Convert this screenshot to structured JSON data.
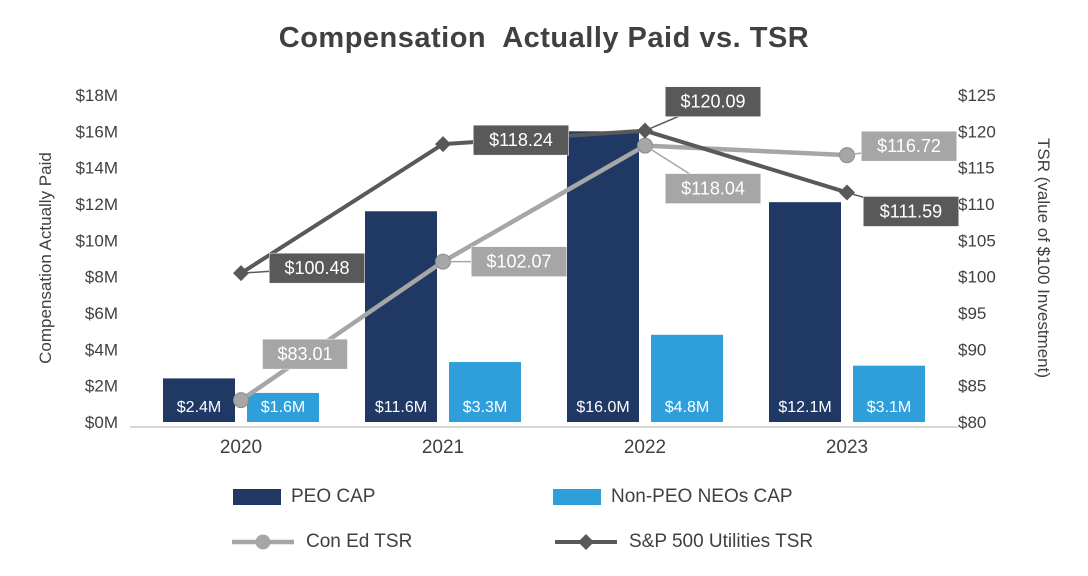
{
  "title": "Compensation  Actually Paid vs. TSR",
  "chart_data": {
    "type": "combo-bar-line",
    "title": "Compensation  Actually Paid vs. TSR",
    "categories": [
      "2020",
      "2021",
      "2022",
      "2023"
    ],
    "gridlines": false,
    "legend_position": "bottom",
    "left_axis": {
      "title": "Compensation Actually Paid",
      "min": 0,
      "max": 18,
      "tick_labels": [
        "$0M",
        "$2M",
        "$4M",
        "$6M",
        "$8M",
        "$10M",
        "$12M",
        "$14M",
        "$16M",
        "$18M"
      ]
    },
    "right_axis": {
      "title": "TSR (value of $100 Investment)",
      "min": 80,
      "max": 125,
      "tick_labels": [
        "$80",
        "$85",
        "$90",
        "$95",
        "$100",
        "$105",
        "$110",
        "$115",
        "$120",
        "$125"
      ]
    },
    "bar_series": [
      {
        "name": "PEO CAP",
        "color": "#1F3864",
        "values_millions": [
          2.4,
          11.6,
          16.0,
          12.1
        ],
        "data_labels": [
          "$2.4M",
          "$11.6M",
          "$16.0M",
          "$12.1M"
        ]
      },
      {
        "name": "Non-PEO NEOs CAP",
        "color": "#2E9FDA",
        "values_millions": [
          1.6,
          3.3,
          4.8,
          3.1
        ],
        "data_labels": [
          "$1.6M",
          "$3.3M",
          "$4.8M",
          "$3.1M"
        ]
      }
    ],
    "line_series": [
      {
        "name": "Con Ed TSR",
        "color": "#A6A6A6",
        "marker": "circle",
        "values": [
          83.01,
          102.07,
          118.04,
          116.72
        ],
        "data_labels": [
          "$83.01",
          "$102.07",
          "$118.04",
          "$116.72"
        ]
      },
      {
        "name": "S&P 500 Utilities TSR",
        "color": "#595959",
        "marker": "diamond",
        "values": [
          100.48,
          118.24,
          120.09,
          111.59
        ],
        "data_labels": [
          "$100.48",
          "$118.24",
          "$120.09",
          "$111.59"
        ]
      }
    ],
    "text_color": "#404040",
    "label_text_color": "#FFFFFF",
    "axis_line_color": "#BFBFBF"
  }
}
